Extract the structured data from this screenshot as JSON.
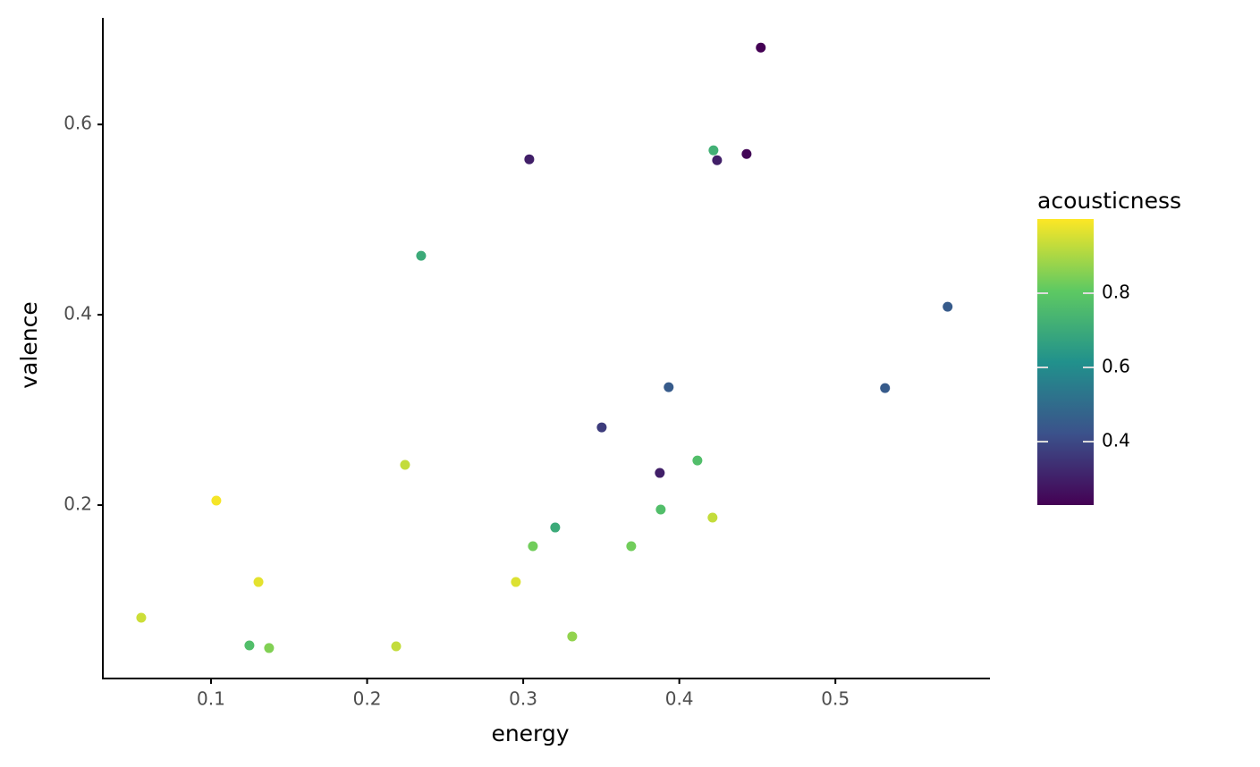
{
  "chart_data": {
    "type": "scatter",
    "x_label": "energy",
    "y_label": "valence",
    "color_label": "acousticness",
    "colormap": "viridis",
    "x": [
      0.4522,
      0.4219,
      0.4242,
      0.4431,
      0.3039,
      0.2346,
      0.5719,
      0.3932,
      0.5318,
      0.3503,
      0.2243,
      0.4116,
      0.3875,
      0.1034,
      0.3881,
      0.4213,
      0.3205,
      0.3062,
      0.3692,
      0.1304,
      0.2953,
      0.0553,
      0.3314,
      0.1246,
      0.1372,
      0.2186
    ],
    "values": [
      0.6808,
      0.5728,
      0.5624,
      0.569,
      0.5634,
      0.462,
      0.4085,
      0.3239,
      0.323,
      0.2817,
      0.2423,
      0.2469,
      0.2338,
      0.2047,
      0.1953,
      0.1869,
      0.1765,
      0.1568,
      0.1568,
      0.1192,
      0.1192,
      0.0817,
      0.062,
      0.0526,
      0.0498,
      0.0516
    ],
    "color_values": [
      0.23,
      0.72,
      0.3,
      0.24,
      0.3,
      0.7,
      0.45,
      0.45,
      0.45,
      0.37,
      0.93,
      0.77,
      0.3,
      0.99,
      0.77,
      0.93,
      0.7,
      0.83,
      0.83,
      0.97,
      0.96,
      0.94,
      0.87,
      0.77,
      0.85,
      0.93
    ],
    "xlim": [
      0.0307,
      0.599
    ],
    "ylim": [
      0.0178,
      0.712
    ],
    "xticks": [
      0.1,
      0.2,
      0.3,
      0.4,
      0.5
    ],
    "yticks": [
      0.2,
      0.4,
      0.6
    ],
    "clim": [
      0.229,
      1.0
    ],
    "cticks": [
      0.4,
      0.6,
      0.8
    ]
  }
}
